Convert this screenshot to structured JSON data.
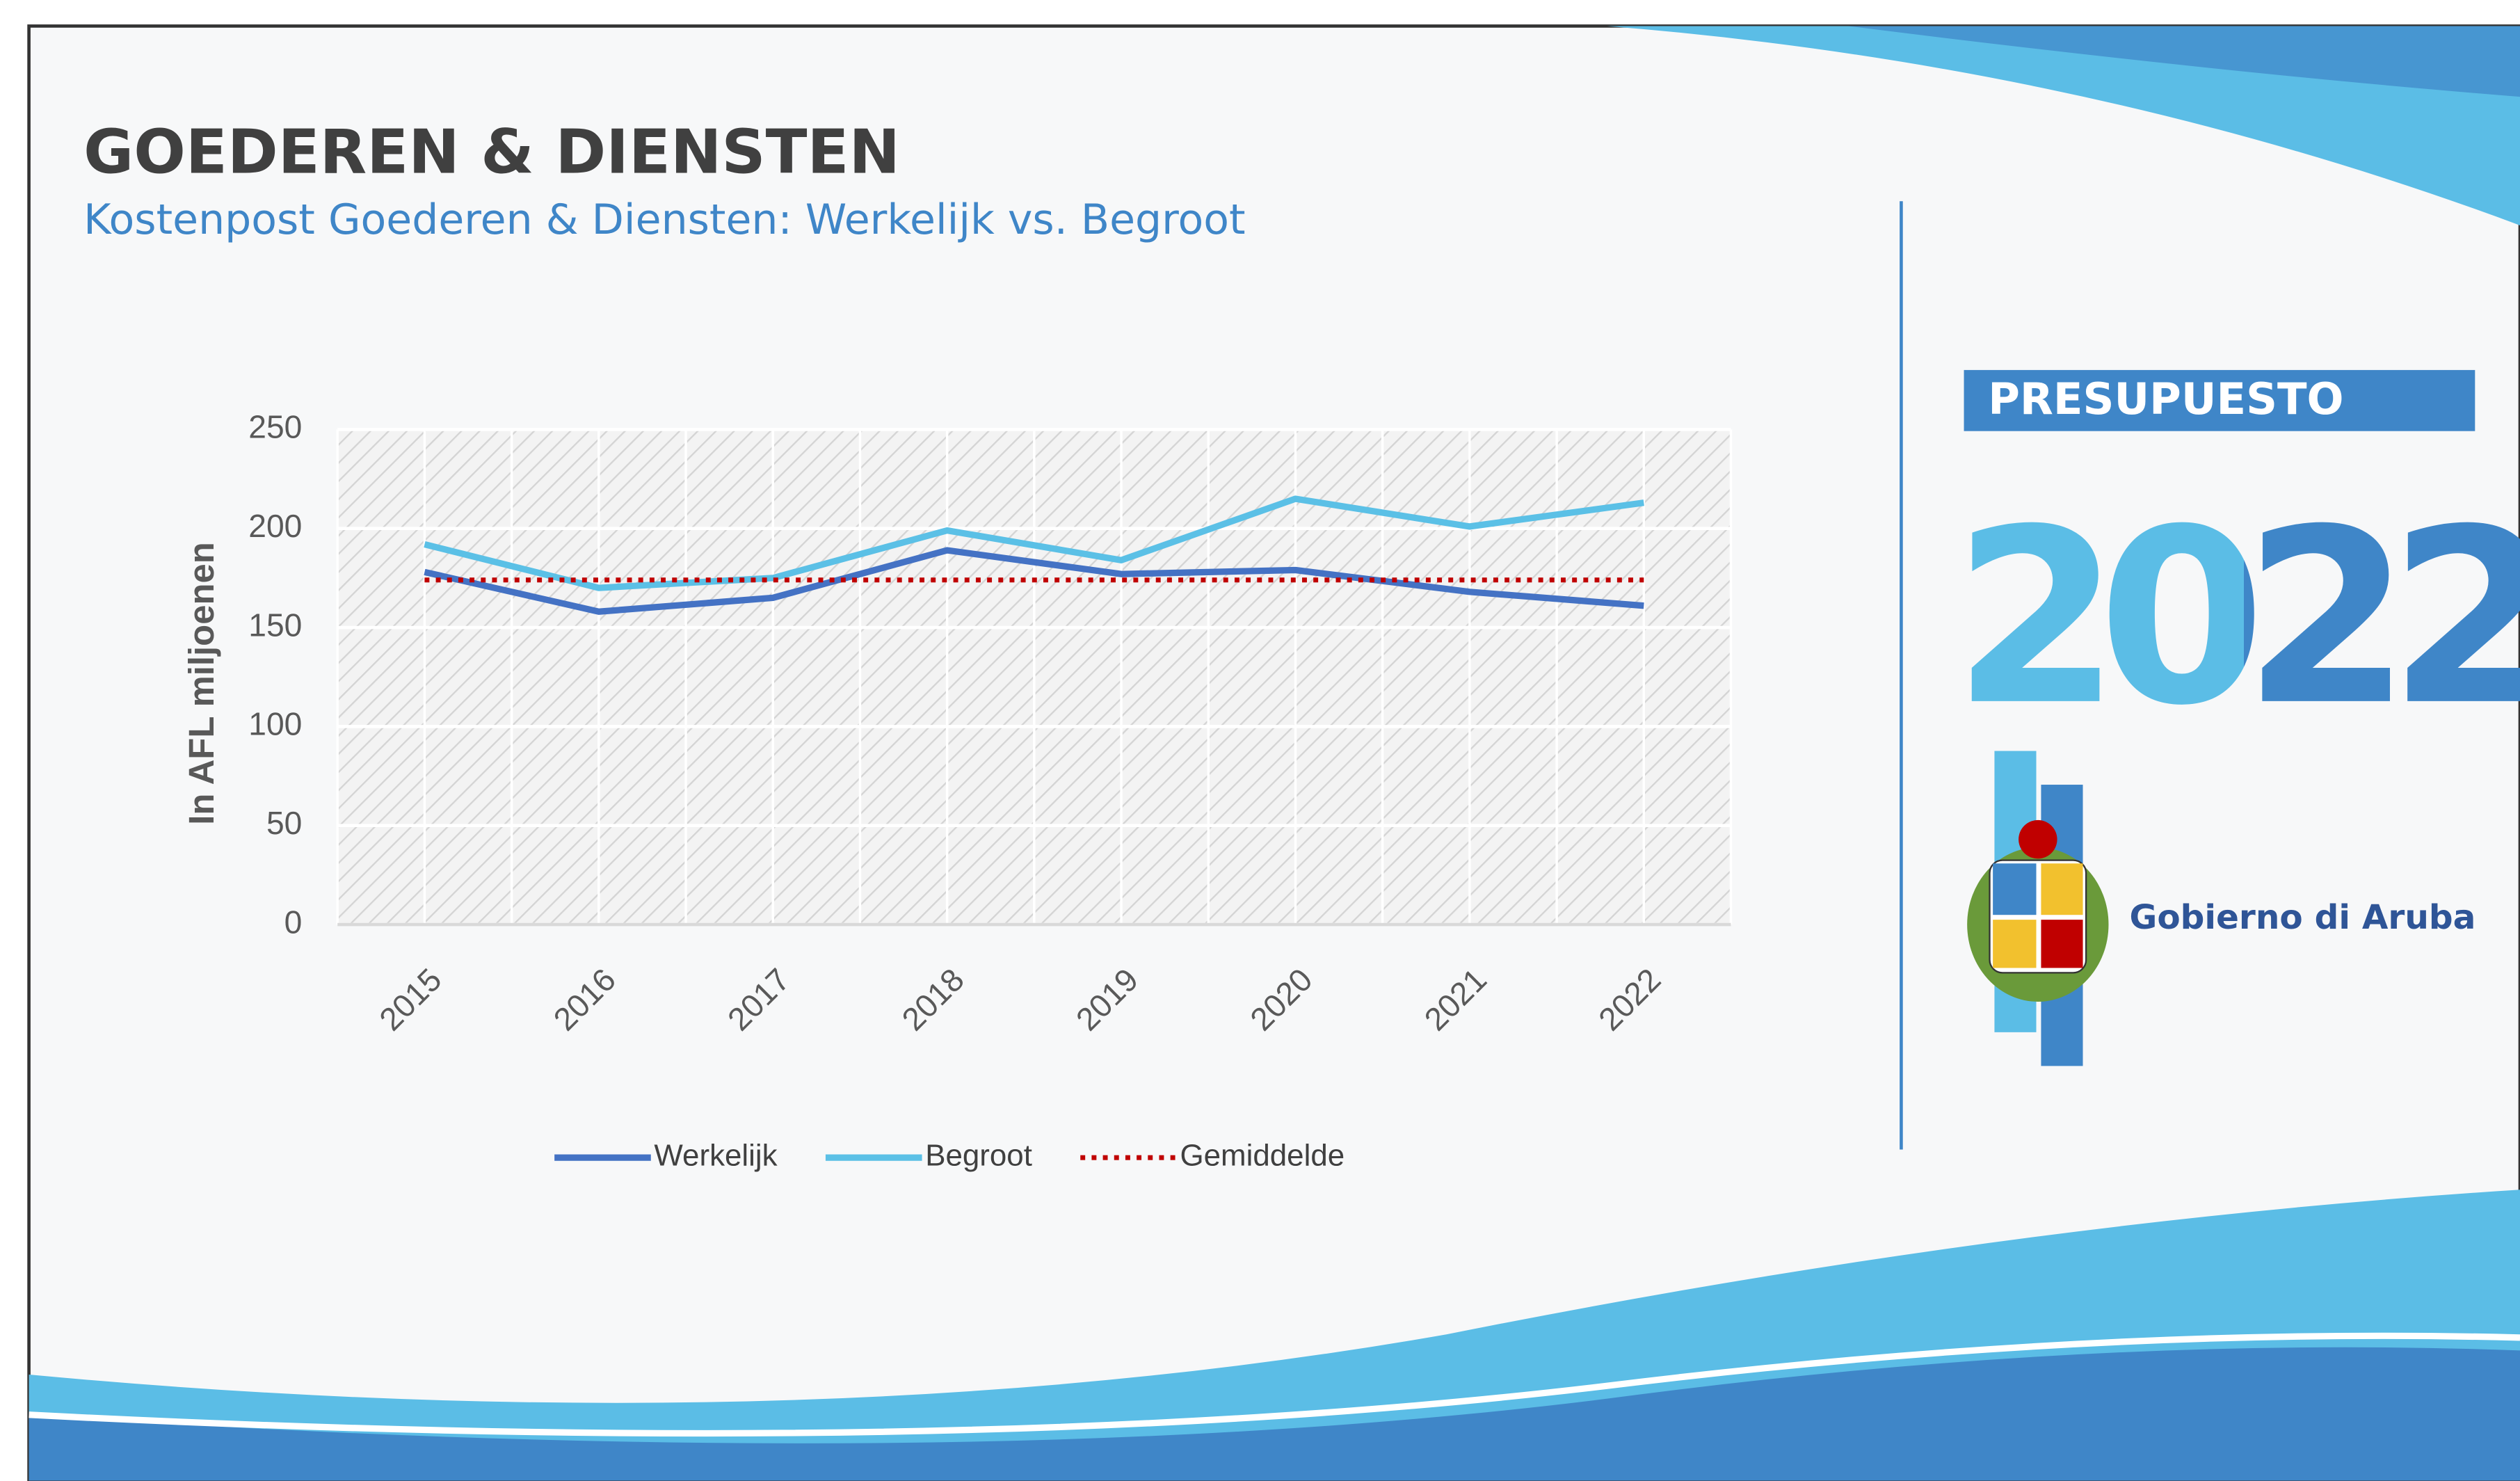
{
  "chart_data": {
    "type": "line",
    "title": "GOEDEREN & DIENSTEN",
    "subtitle": "Kostenpost Goederen & Diensten: Werkelijk vs. Begroot",
    "y_label": "In AFL miljoenen",
    "categories": [
      "2015",
      "2016",
      "2017",
      "2018",
      "2019",
      "2020",
      "2021",
      "2022"
    ],
    "series": [
      {
        "name": "Werkelijk",
        "color": "#4472c4",
        "style": "solid",
        "values": [
          178,
          158,
          165,
          189,
          177,
          179,
          168,
          161
        ]
      },
      {
        "name": "Begroot",
        "color": "#5bc0e6",
        "style": "solid",
        "values": [
          192,
          170,
          175,
          199,
          184,
          215,
          201,
          213
        ]
      },
      {
        "name": "Gemiddelde",
        "color": "#c00000",
        "style": "dotted",
        "values": [
          174,
          174,
          174,
          174,
          174,
          174,
          174,
          174
        ]
      }
    ],
    "ylim": [
      0,
      250
    ],
    "yticks": [
      0,
      50,
      100,
      150,
      200,
      250
    ],
    "grid": true,
    "legend": "bottom"
  },
  "branding": {
    "badge": "PRESUPUESTO",
    "year": "2022",
    "government": "Gobierno di Aruba"
  }
}
